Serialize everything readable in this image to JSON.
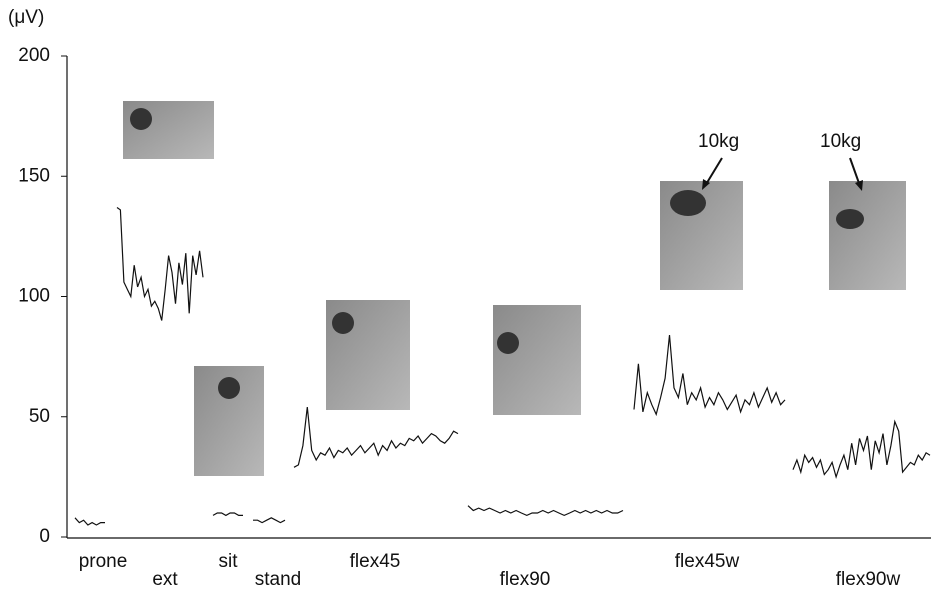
{
  "chart_data": {
    "type": "line",
    "y_label": "(μV)",
    "ylim": [
      0,
      200
    ],
    "yticks": [
      0,
      50,
      100,
      150,
      200
    ],
    "color": "#111111",
    "series": [
      {
        "name": "prone",
        "values": [
          8,
          6,
          7,
          5,
          6,
          5,
          6,
          6
        ]
      },
      {
        "name": "ext",
        "values": [
          137,
          136,
          106,
          103,
          100,
          113,
          104,
          108,
          100,
          103,
          96,
          98,
          95,
          90,
          103,
          117,
          110,
          97,
          114,
          105,
          118,
          93,
          117,
          109,
          119,
          108
        ]
      },
      {
        "name": "sit",
        "values": [
          9,
          10,
          10,
          9,
          10,
          10,
          9,
          9
        ]
      },
      {
        "name": "stand",
        "values": [
          7,
          7,
          6,
          7,
          8,
          7,
          6,
          7
        ]
      },
      {
        "name": "flex45",
        "values": [
          29,
          30,
          38,
          54,
          36,
          32,
          35,
          34,
          37,
          33,
          36,
          35,
          37,
          34,
          36,
          38,
          35,
          37,
          39,
          34,
          38,
          36,
          40,
          37,
          39,
          38,
          41,
          40,
          42,
          39,
          41,
          43,
          42,
          40,
          39,
          41,
          44,
          43
        ]
      },
      {
        "name": "flex90",
        "values": [
          13,
          11,
          12,
          11,
          12,
          11,
          10,
          11,
          10,
          11,
          10,
          9,
          10,
          10,
          11,
          10,
          11,
          10,
          9,
          10,
          11,
          10,
          11,
          10,
          11,
          10,
          11,
          10,
          10,
          11
        ]
      },
      {
        "name": "flex45w",
        "values": [
          53,
          72,
          52,
          60,
          55,
          51,
          58,
          66,
          84,
          62,
          58,
          68,
          55,
          60,
          57,
          62,
          54,
          58,
          55,
          60,
          57,
          53,
          56,
          59,
          52,
          57,
          55,
          60,
          54,
          58,
          62,
          56,
          60,
          55,
          57
        ]
      },
      {
        "name": "flex90w",
        "values": [
          28,
          32,
          27,
          34,
          31,
          33,
          29,
          32,
          26,
          28,
          31,
          25,
          30,
          34,
          28,
          39,
          30,
          41,
          36,
          42,
          28,
          40,
          35,
          43,
          30,
          38,
          48,
          44,
          27,
          29,
          31,
          30,
          34,
          32,
          35,
          34
        ]
      }
    ],
    "annotations": [
      "10kg",
      "10kg"
    ]
  }
}
